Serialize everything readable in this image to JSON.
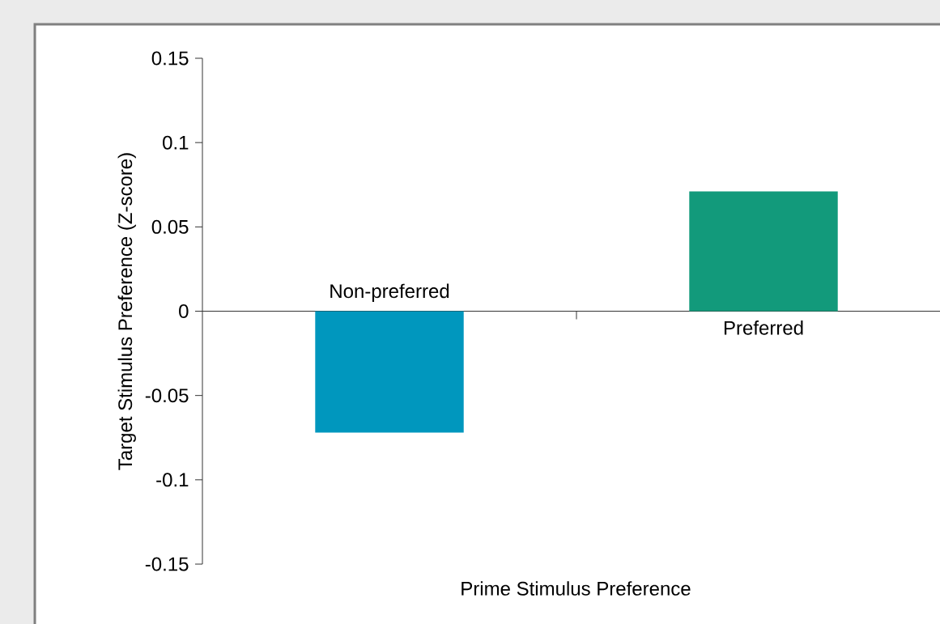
{
  "chart_data": {
    "type": "bar",
    "categories": [
      "Non-preferred",
      "Preferred"
    ],
    "values": [
      -0.072,
      0.071
    ],
    "colors": [
      "#0097be",
      "#129a7b"
    ],
    "xlabel": "Prime Stimulus Preference",
    "ylabel": "Target Stimulus Preference (Z-score)",
    "ylim": [
      -0.15,
      0.15
    ],
    "yticks": [
      -0.15,
      -0.1,
      -0.05,
      0,
      0.05,
      0.1,
      0.15
    ]
  }
}
